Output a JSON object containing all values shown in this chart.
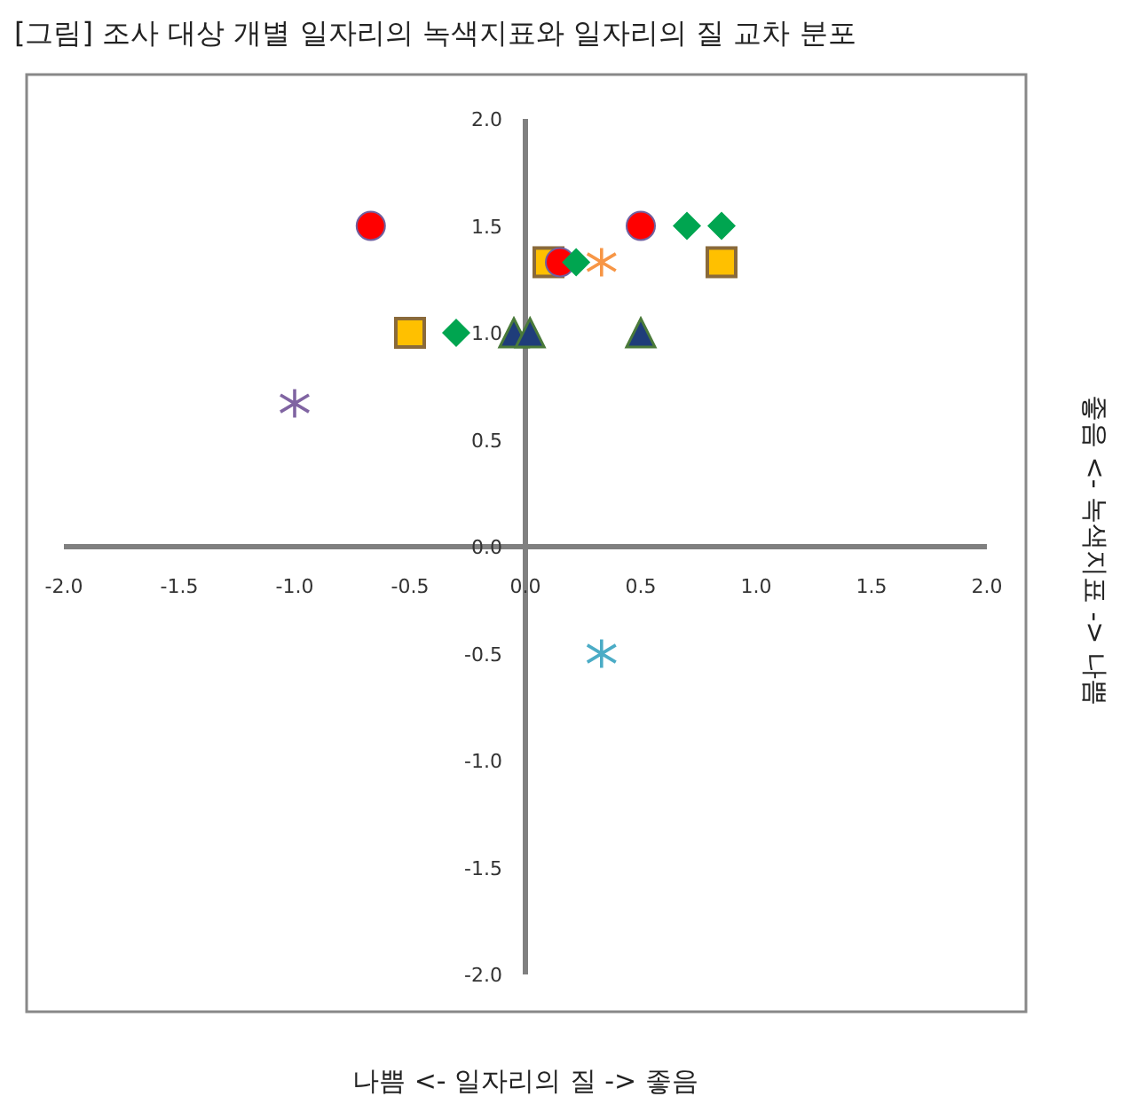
{
  "chart_data": {
    "type": "scatter",
    "title": "[그림] 조사 대상 개별 일자리의 녹색지표와 일자리의 질 교차 분포",
    "xlabel": "나쁨 <- 일자리의 질 -> 좋음",
    "y2label": "좋음 <- 녹색지표 -> 나쁨",
    "xlim": [
      -2,
      2
    ],
    "ylim": [
      -2,
      2
    ],
    "xticks": [
      {
        "value": -2,
        "label": "-2.0"
      },
      {
        "value": -1.5,
        "label": "-1.5"
      },
      {
        "value": -1,
        "label": "-1.0"
      },
      {
        "value": -0.5,
        "label": "-0.5"
      },
      {
        "value": 0,
        "label": "0.0"
      },
      {
        "value": 0.5,
        "label": "0.5"
      },
      {
        "value": 1,
        "label": "1.0"
      },
      {
        "value": 1.5,
        "label": "1.5"
      },
      {
        "value": 2,
        "label": "2.0"
      }
    ],
    "yticks": [
      {
        "value": -2,
        "label": "-2.0"
      },
      {
        "value": -1.5,
        "label": "-1.5"
      },
      {
        "value": -1,
        "label": "-1.0"
      },
      {
        "value": -0.5,
        "label": "-0.5"
      },
      {
        "value": 0,
        "label": "0.0"
      },
      {
        "value": 0.5,
        "label": "0.5"
      },
      {
        "value": 1,
        "label": "1.0"
      },
      {
        "value": 1.5,
        "label": "1.5"
      },
      {
        "value": 2,
        "label": "2.0"
      }
    ],
    "series": [
      {
        "type": "scatter",
        "marker": "square",
        "color": "#ffc000",
        "x": [
          0.1,
          0.85,
          -0.5
        ],
        "values": [
          1.33,
          1.33,
          1.0
        ]
      },
      {
        "type": "scatter",
        "marker": "circle",
        "color": "#ff0000",
        "x": [
          -0.67,
          0.5,
          0.15
        ],
        "values": [
          1.5,
          1.5,
          1.33
        ]
      },
      {
        "type": "scatter",
        "marker": "diamond",
        "color": "#00a550",
        "x": [
          0.7,
          0.85,
          0.22,
          -0.3
        ],
        "values": [
          1.5,
          1.5,
          1.33,
          1.0
        ]
      },
      {
        "type": "scatter",
        "marker": "triangle",
        "color": "#1f3d7a",
        "x": [
          -0.05,
          0.02,
          0.5
        ],
        "values": [
          1.0,
          1.0,
          1.0
        ]
      },
      {
        "type": "scatter",
        "marker": "cross",
        "color": "#8064a2",
        "x": [
          -1.0
        ],
        "values": [
          0.67
        ]
      },
      {
        "type": "scatter",
        "marker": "cross",
        "color": "#f79646",
        "x": [
          0.33
        ],
        "values": [
          1.33
        ]
      },
      {
        "type": "scatter",
        "marker": "cross",
        "color": "#4bacc6",
        "x": [
          0.33
        ],
        "values": [
          -0.5
        ]
      }
    ]
  }
}
